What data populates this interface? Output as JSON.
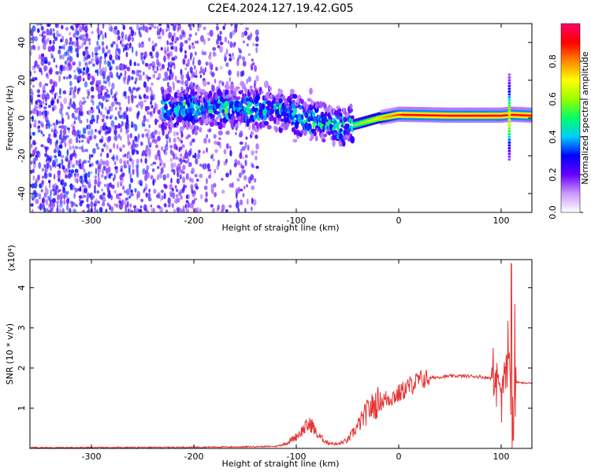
{
  "title": "C2E4.2024.127.19.42.G05",
  "chart_data": [
    {
      "type": "heatmap",
      "xlabel": "Height of straight line (km)",
      "ylabel": "Frequency (Hz)",
      "xlim": [
        -360,
        130
      ],
      "ylim": [
        -50,
        50
      ],
      "x_ticks": [
        -300,
        -200,
        -100,
        0,
        100
      ],
      "y_ticks": [
        -40,
        -20,
        0,
        20,
        40
      ],
      "colorbar": {
        "label": "Normalized spectral amplitude",
        "range": [
          0.0,
          1.0
        ],
        "ticks": [
          0.0,
          0.2,
          0.4,
          0.6,
          0.8
        ],
        "colormap": [
          "#ffffff",
          "#cc99ff",
          "#6600ff",
          "#0000ff",
          "#00ccff",
          "#00ff66",
          "#99ff00",
          "#ffff00",
          "#ff8800",
          "#ff0000",
          "#ff0066"
        ]
      },
      "ridge": [
        {
          "x": -220,
          "f": 5
        },
        {
          "x": -160,
          "f": 6
        },
        {
          "x": -120,
          "f": 5
        },
        {
          "x": -90,
          "f": 0
        },
        {
          "x": -70,
          "f": -2
        },
        {
          "x": -55,
          "f": -5
        },
        {
          "x": -40,
          "f": -3
        },
        {
          "x": -20,
          "f": 0
        },
        {
          "x": 0,
          "f": 2
        },
        {
          "x": 50,
          "f": 1.5
        },
        {
          "x": 100,
          "f": 1.5
        },
        {
          "x": 110,
          "f": 2
        },
        {
          "x": 130,
          "f": 1.5
        }
      ]
    },
    {
      "type": "line",
      "xlabel": "Height of straight line (km)",
      "ylabel": "SNR (10 * v/v)",
      "multiplier": "(x10⁴)",
      "xlim": [
        -360,
        130
      ],
      "ylim": [
        0,
        4.7
      ],
      "x_ticks": [
        -300,
        -200,
        -100,
        0,
        100
      ],
      "y_ticks": [
        1,
        2,
        3,
        4
      ],
      "color": "#e53333",
      "series": [
        {
          "x": [
            -360,
            -300,
            -200,
            -150,
            -120,
            -110,
            -100,
            -90,
            -85,
            -80,
            -70,
            -60,
            -50,
            -40,
            -30,
            -20,
            -10,
            0,
            10,
            20,
            30,
            40,
            50,
            60,
            70,
            80,
            90,
            100,
            105,
            108,
            110,
            112,
            115,
            120,
            130
          ],
          "values": [
            0.02,
            0.02,
            0.03,
            0.04,
            0.05,
            0.12,
            0.3,
            0.55,
            0.6,
            0.35,
            0.15,
            0.1,
            0.2,
            0.55,
            0.95,
            1.15,
            1.25,
            1.35,
            1.55,
            1.7,
            1.75,
            1.78,
            1.8,
            1.8,
            1.8,
            1.78,
            1.75,
            1.7,
            1.9,
            2.4,
            0.3,
            1.5,
            1.65,
            1.63,
            1.62
          ]
        }
      ]
    }
  ]
}
